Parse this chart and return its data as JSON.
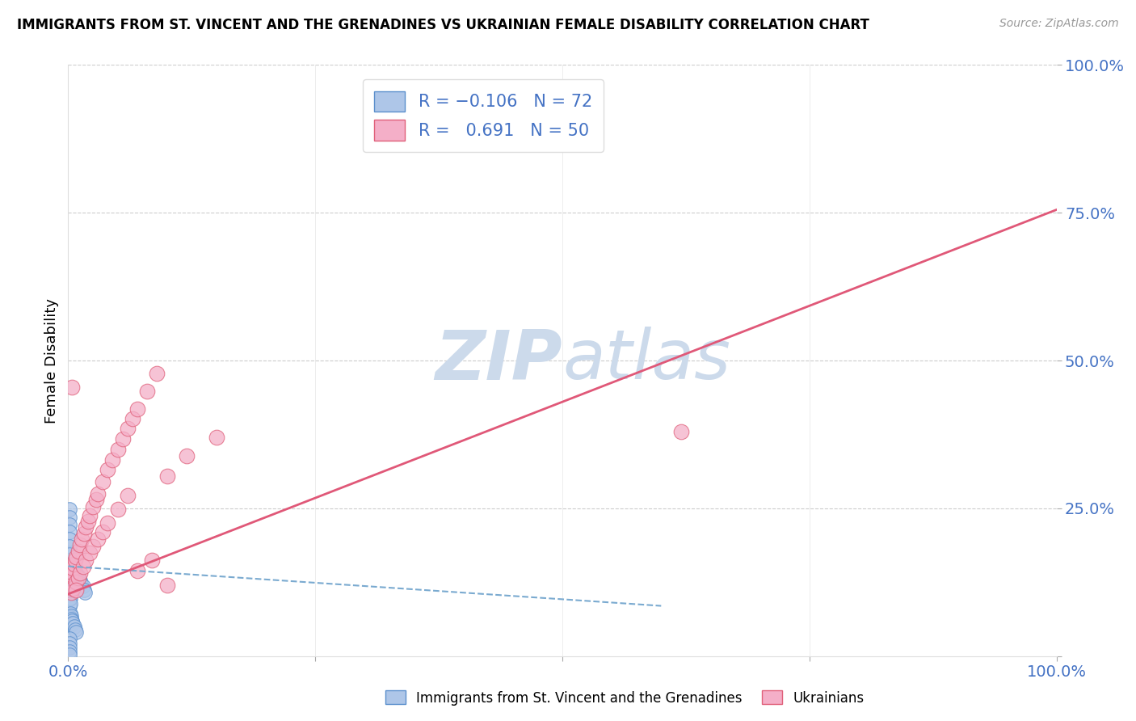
{
  "title": "IMMIGRANTS FROM ST. VINCENT AND THE GRENADINES VS UKRAINIAN FEMALE DISABILITY CORRELATION CHART",
  "source": "Source: ZipAtlas.com",
  "ylabel": "Female Disability",
  "text_color_blue": "#4472c4",
  "blue_color": "#aec6e8",
  "pink_color": "#f4afc8",
  "blue_edge": "#5b8fcc",
  "pink_edge": "#e0607a",
  "pink_line_color": "#e05878",
  "blue_line_color": "#7aaad0",
  "watermark_color": "#ccdaeb",
  "grid_color": "#cccccc",
  "blue_points_x": [
    0.001,
    0.001,
    0.001,
    0.001,
    0.001,
    0.001,
    0.001,
    0.001,
    0.001,
    0.001,
    0.002,
    0.002,
    0.002,
    0.002,
    0.002,
    0.002,
    0.002,
    0.002,
    0.003,
    0.003,
    0.003,
    0.003,
    0.003,
    0.004,
    0.004,
    0.004,
    0.004,
    0.005,
    0.005,
    0.005,
    0.006,
    0.006,
    0.006,
    0.007,
    0.007,
    0.008,
    0.008,
    0.009,
    0.009,
    0.01,
    0.01,
    0.011,
    0.012,
    0.013,
    0.015,
    0.016,
    0.017,
    0.001,
    0.001,
    0.001,
    0.001,
    0.001,
    0.001,
    0.001,
    0.002,
    0.002,
    0.002,
    0.002,
    0.003,
    0.003,
    0.003,
    0.004,
    0.005,
    0.006,
    0.007,
    0.008,
    0.001,
    0.001,
    0.001,
    0.001,
    0.001
  ],
  "blue_points_y": [
    0.155,
    0.148,
    0.14,
    0.133,
    0.125,
    0.118,
    0.11,
    0.103,
    0.095,
    0.085,
    0.155,
    0.148,
    0.138,
    0.128,
    0.118,
    0.108,
    0.098,
    0.088,
    0.155,
    0.145,
    0.135,
    0.125,
    0.115,
    0.15,
    0.14,
    0.13,
    0.12,
    0.148,
    0.138,
    0.128,
    0.145,
    0.135,
    0.125,
    0.142,
    0.132,
    0.14,
    0.13,
    0.138,
    0.128,
    0.135,
    0.125,
    0.132,
    0.128,
    0.122,
    0.118,
    0.112,
    0.108,
    0.248,
    0.235,
    0.222,
    0.21,
    0.198,
    0.185,
    0.172,
    0.072,
    0.065,
    0.058,
    0.052,
    0.068,
    0.062,
    0.055,
    0.06,
    0.055,
    0.05,
    0.045,
    0.04,
    0.03,
    0.022,
    0.015,
    0.008,
    0.002
  ],
  "pink_points_x": [
    0.002,
    0.003,
    0.004,
    0.005,
    0.006,
    0.007,
    0.008,
    0.01,
    0.012,
    0.014,
    0.016,
    0.018,
    0.02,
    0.022,
    0.025,
    0.028,
    0.03,
    0.035,
    0.04,
    0.045,
    0.05,
    0.055,
    0.06,
    0.065,
    0.07,
    0.08,
    0.09,
    0.1,
    0.12,
    0.15,
    0.003,
    0.005,
    0.008,
    0.01,
    0.012,
    0.015,
    0.018,
    0.022,
    0.025,
    0.03,
    0.035,
    0.04,
    0.05,
    0.06,
    0.07,
    0.085,
    0.1,
    0.62,
    0.004,
    0.008
  ],
  "pink_points_y": [
    0.135,
    0.138,
    0.142,
    0.148,
    0.155,
    0.162,
    0.168,
    0.178,
    0.188,
    0.198,
    0.208,
    0.218,
    0.228,
    0.238,
    0.252,
    0.265,
    0.275,
    0.295,
    0.315,
    0.332,
    0.35,
    0.368,
    0.385,
    0.402,
    0.418,
    0.448,
    0.478,
    0.305,
    0.338,
    0.37,
    0.108,
    0.115,
    0.125,
    0.132,
    0.14,
    0.152,
    0.162,
    0.175,
    0.185,
    0.198,
    0.21,
    0.225,
    0.248,
    0.272,
    0.145,
    0.162,
    0.12,
    0.38,
    0.455,
    0.112
  ],
  "pink_trend_x": [
    0.0,
    1.0
  ],
  "pink_trend_y": [
    0.105,
    0.755
  ],
  "blue_trend_x": [
    0.0,
    0.6
  ],
  "blue_trend_y": [
    0.152,
    0.085
  ],
  "xlim": [
    0.0,
    1.0
  ],
  "ylim": [
    0.0,
    1.0
  ],
  "xticks": [
    0.0,
    0.25,
    0.5,
    0.75,
    1.0
  ],
  "xticklabels": [
    "0.0%",
    "",
    "",
    "",
    "100.0%"
  ],
  "yticks": [
    0.0,
    0.25,
    0.5,
    0.75,
    1.0
  ],
  "yticklabels": [
    "",
    "25.0%",
    "50.0%",
    "75.0%",
    "100.0%"
  ],
  "figsize": [
    14.06,
    8.92
  ],
  "dpi": 100
}
